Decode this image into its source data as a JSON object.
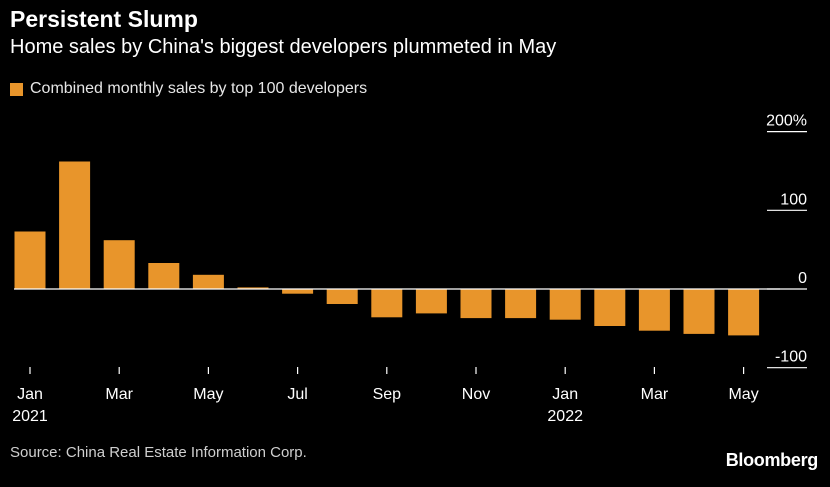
{
  "chart_data": {
    "type": "bar",
    "title": "Persistent Slump",
    "subtitle": "Home sales by China's biggest developers plummeted in May",
    "legend": [
      {
        "label": "Combined monthly sales by top 100 developers",
        "color": "#e8952b"
      }
    ],
    "categories": [
      "Jan 2021",
      "Feb 2021",
      "Mar 2021",
      "Apr 2021",
      "May 2021",
      "Jun 2021",
      "Jul 2021",
      "Aug 2021",
      "Sep 2021",
      "Oct 2021",
      "Nov 2021",
      "Dec 2021",
      "Jan 2022",
      "Feb 2022",
      "Mar 2022",
      "Apr 2022",
      "May 2022"
    ],
    "series": [
      {
        "name": "Combined monthly sales by top 100 developers",
        "values": [
          73,
          162,
          62,
          33,
          18,
          2,
          -6,
          -19,
          -36,
          -31,
          -37,
          -37,
          -39,
          -47,
          -53,
          -57,
          -59
        ]
      }
    ],
    "x_tick_labels": [
      {
        "index": 0,
        "line1": "Jan",
        "line2": "2021"
      },
      {
        "index": 2,
        "line1": "Mar",
        "line2": ""
      },
      {
        "index": 4,
        "line1": "May",
        "line2": ""
      },
      {
        "index": 6,
        "line1": "Jul",
        "line2": ""
      },
      {
        "index": 8,
        "line1": "Sep",
        "line2": ""
      },
      {
        "index": 10,
        "line1": "Nov",
        "line2": ""
      },
      {
        "index": 12,
        "line1": "Jan",
        "line2": "2022"
      },
      {
        "index": 14,
        "line1": "Mar",
        "line2": ""
      },
      {
        "index": 16,
        "line1": "May",
        "line2": ""
      }
    ],
    "y_ticks": [
      {
        "value": 200,
        "label": "200%"
      },
      {
        "value": 100,
        "label": "100"
      },
      {
        "value": 0,
        "label": "0"
      },
      {
        "value": -100,
        "label": "-100"
      }
    ],
    "ylim": [
      -100,
      200
    ],
    "y_axis_side": "right",
    "grid": false,
    "legend_position": "top-left",
    "colors": {
      "bar": "#e8952b",
      "background": "#000000",
      "axis": "#ffffff",
      "text": "#ffffff"
    }
  },
  "source": "Source: China Real Estate Information Corp.",
  "brand": "Bloomberg"
}
